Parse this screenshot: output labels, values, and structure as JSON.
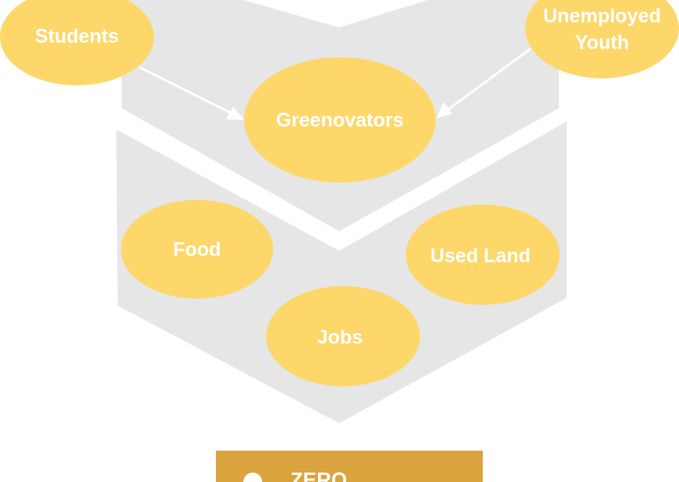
{
  "nodes": {
    "students": {
      "label": "Students"
    },
    "unemployed_youth": {
      "label_line1": "Unemployed",
      "label_line2": "Youth"
    },
    "greenovators": {
      "label": "Greenovators"
    },
    "food": {
      "label": "Food"
    },
    "used_land": {
      "label": "Used Land"
    },
    "jobs": {
      "label": "Jobs"
    }
  },
  "banner": {
    "text": "ZERO"
  },
  "colors": {
    "node_fill": "#fdd76a",
    "chevron_fill": "#e6e6e6",
    "banner_fill": "#d9a33e",
    "text": "#ffffff"
  }
}
